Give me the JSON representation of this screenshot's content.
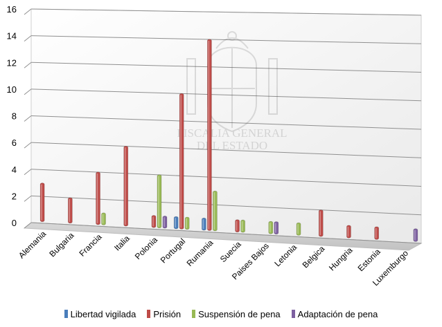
{
  "chart_data": {
    "type": "bar",
    "title": "",
    "xlabel": "",
    "ylabel": "",
    "ylim": [
      0,
      16
    ],
    "yticks": [
      0,
      2,
      4,
      6,
      8,
      10,
      12,
      14,
      16
    ],
    "grid": true,
    "legend_position": "bottom",
    "categories": [
      "Alemania",
      "Bulgaria",
      "Francia",
      "Italia",
      "Polonia",
      "Portugal",
      "Rumania",
      "Suecia",
      "Paises Bajos",
      "Letonia",
      "Belgica",
      "Hungria",
      "Estonia",
      "Luxemburgo"
    ],
    "series": [
      {
        "name": "Libertad vigilada",
        "color": "#4a7ebb",
        "values": [
          0,
          0,
          0,
          0,
          0,
          1,
          1,
          0,
          0,
          0,
          0,
          0,
          0,
          0
        ]
      },
      {
        "name": "Prisión",
        "color": "#be4b48",
        "values": [
          3,
          2,
          4,
          6,
          1,
          10,
          14,
          1,
          0,
          0,
          2,
          1,
          1,
          0
        ]
      },
      {
        "name": "Suspensión de pena",
        "color": "#98b954",
        "values": [
          0,
          0,
          1,
          0,
          4,
          1,
          3,
          1,
          1,
          1,
          0,
          0,
          0,
          0
        ]
      },
      {
        "name": "Adaptación de pena",
        "color": "#7d60a0",
        "values": [
          0,
          0,
          0,
          0,
          1,
          0,
          0,
          0,
          1,
          0,
          0,
          0,
          0,
          1
        ]
      }
    ]
  },
  "watermark": {
    "line1": "FISCALIA GENERAL",
    "line2": "DEL ESTADO"
  }
}
